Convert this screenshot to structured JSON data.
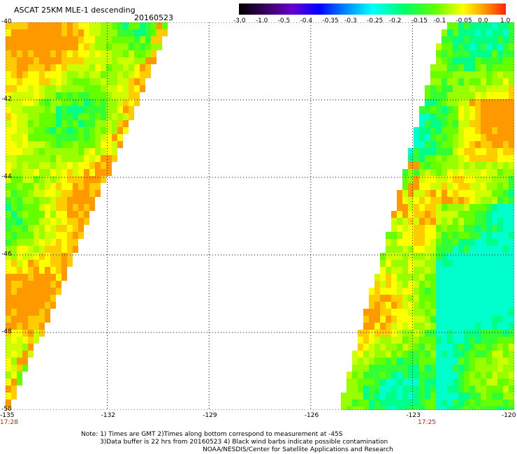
{
  "header": {
    "title": "ASCAT 25KM MLE-1 descending",
    "date": "20160523"
  },
  "colorbar": {
    "ticks": [
      "-3.0",
      "-1.0",
      "-0.5",
      "-0.4",
      "-0.35",
      "-0.3",
      "-0.25",
      "-0.2",
      "-0.15",
      "-0.1",
      "-0.05",
      "0.0",
      "1.0"
    ],
    "colors": [
      "#000000",
      "#3a0060",
      "#6600cc",
      "#0000ff",
      "#0066ff",
      "#00ccff",
      "#00ffee",
      "#00ff88",
      "#33ff00",
      "#aaff00",
      "#ffff00",
      "#ff9900",
      "#ff2200"
    ]
  },
  "map": {
    "lat_labels": [
      "-40",
      "-42",
      "-44",
      "-46",
      "-48",
      "-50"
    ],
    "lon_labels": [
      "-135",
      "-132",
      "-129",
      "-126",
      "-123",
      "-120"
    ],
    "time_labels": [
      "17:28",
      "17:25"
    ],
    "lat_range": [
      -50,
      -40
    ],
    "lon_range": [
      -135,
      -120
    ],
    "gridline_style": "dotted"
  },
  "notes": {
    "line1": "Note: 1) Times are GMT 2)Times along bottom correspond to measurement at -45S",
    "line2": "3)Data buffer is 22 hrs from 20160523 4) Black wind barbs indicate possible contamination",
    "line3": "NOAA/NESDIS/Center for Satellite Applications and Research"
  }
}
